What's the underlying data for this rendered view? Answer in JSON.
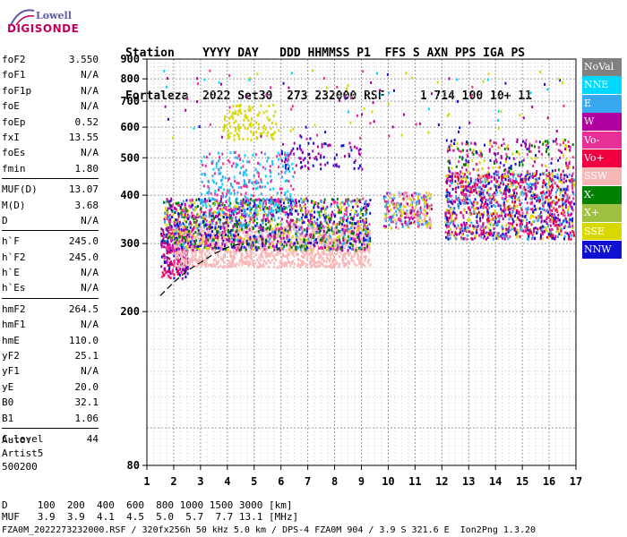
{
  "logo": {
    "line1": "Lowell",
    "line2": "DIGISONDE"
  },
  "header": {
    "line1": "Station    YYYY DAY   DDD HHMMSS P1  FFS S AXN PPS IGA PS",
    "line2": "Fortaleza  2022 Set30  273 232000 RSF     1 714 100 10+ 11"
  },
  "params": {
    "group1": [
      {
        "label": "foF2",
        "value": "3.550"
      },
      {
        "label": "foF1",
        "value": "N/A"
      },
      {
        "label": "foF1p",
        "value": "N/A"
      },
      {
        "label": "foE",
        "value": "N/A"
      },
      {
        "label": "foEp",
        "value": "0.52"
      },
      {
        "label": "fxI",
        "value": "13.55"
      },
      {
        "label": "foEs",
        "value": "N/A"
      },
      {
        "label": "fmin",
        "value": "1.80"
      }
    ],
    "group2": [
      {
        "label": "MUF(D)",
        "value": "13.07"
      },
      {
        "label": "M(D)",
        "value": "3.68"
      },
      {
        "label": "D",
        "value": "N/A"
      }
    ],
    "group3": [
      {
        "label": "h`F",
        "value": "245.0"
      },
      {
        "label": "h`F2",
        "value": "245.0"
      },
      {
        "label": "h`E",
        "value": "N/A"
      },
      {
        "label": "h`Es",
        "value": "N/A"
      }
    ],
    "group4": [
      {
        "label": "hmF2",
        "value": "264.5"
      },
      {
        "label": "hmF1",
        "value": "N/A"
      },
      {
        "label": "hmE",
        "value": "110.0"
      },
      {
        "label": "yF2",
        "value": "25.1"
      },
      {
        "label": "yF1",
        "value": "N/A"
      },
      {
        "label": "yE",
        "value": "20.0"
      },
      {
        "label": "B0",
        "value": "32.1"
      },
      {
        "label": "B1",
        "value": "1.06"
      }
    ],
    "group5": [
      {
        "label": "C-level",
        "value": "44"
      }
    ]
  },
  "auto": {
    "line1": "Auto:",
    "line2": "Artist5",
    "line3": "500200"
  },
  "legend": [
    {
      "label": "NoVal",
      "color": "#808080"
    },
    {
      "label": "NNE",
      "color": "#00d8ff"
    },
    {
      "label": "E",
      "color": "#38a8f0"
    },
    {
      "label": "W",
      "color": "#b000a0"
    },
    {
      "label": "Vo-",
      "color": "#e83098"
    },
    {
      "label": "Vo+",
      "color": "#f00040"
    },
    {
      "label": "SSW",
      "color": "#f8b8b8"
    },
    {
      "label": "X-",
      "color": "#008000"
    },
    {
      "label": "X+",
      "color": "#a0c040"
    },
    {
      "label": "SSE",
      "color": "#d8d800"
    },
    {
      "label": "NNW",
      "color": "#1010d0"
    }
  ],
  "dtable": {
    "line1": "D     100  200  400  600  800 1000 1500 3000 [km]",
    "line2": "MUF   3.9  3.9  4.1  4.5  5.0  5.7  7.7 13.1 [MHz]"
  },
  "footer": {
    "text": "FZA0M_2022273232000.RSF / 320fx256h 50 kHz 5.0 km / DPS-4 FZA0M 904 / 3.9 S 321.6 E  Ion2Png 1.3.20"
  },
  "chart_data": {
    "type": "scatter",
    "title": "",
    "xlabel": "",
    "ylabel": "",
    "xlim": [
      1,
      17
    ],
    "ylim": [
      80,
      900
    ],
    "y_scale": "log",
    "x_ticks": [
      "1",
      "2",
      "3",
      "4",
      "5",
      "6",
      "7",
      "8",
      "9",
      "10",
      "11",
      "12",
      "13",
      "14",
      "15",
      "16",
      "17"
    ],
    "y_ticks": [
      "80",
      "200",
      "300",
      "400",
      "500",
      "600",
      "700",
      "800",
      "900"
    ],
    "grid": true,
    "legend_position": "right",
    "trace": {
      "name": "",
      "x": [
        1.5,
        2.0,
        2.5,
        3.0,
        3.5,
        4.0,
        4.5
      ],
      "y": [
        220,
        238,
        255,
        268,
        282,
        293,
        300
      ]
    },
    "clusters": [
      {
        "x": [
          1.5,
          2.5
        ],
        "y": [
          245,
          330
        ],
        "density": 0.9,
        "colors": [
          "#f00040",
          "#b000a0",
          "#e83098",
          "#1010d0"
        ]
      },
      {
        "x": [
          2.0,
          9.3
        ],
        "y": [
          262,
          335
        ],
        "density": 0.8,
        "colors": [
          "#f8b8b8"
        ]
      },
      {
        "x": [
          1.6,
          9.3
        ],
        "y": [
          290,
          395
        ],
        "density": 0.7,
        "colors": [
          "#d8d800",
          "#e83098",
          "#38a8f0",
          "#b000a0",
          "#008000",
          "#1010d0"
        ]
      },
      {
        "x": [
          3.0,
          6.5
        ],
        "y": [
          360,
          520
        ],
        "density": 0.25,
        "colors": [
          "#38a8f0",
          "#00d8ff",
          "#e83098"
        ]
      },
      {
        "x": [
          3.8,
          5.8
        ],
        "y": [
          560,
          690
        ],
        "density": 0.3,
        "colors": [
          "#d8d800"
        ]
      },
      {
        "x": [
          6.0,
          9.0
        ],
        "y": [
          470,
          550
        ],
        "density": 0.2,
        "colors": [
          "#1010d0",
          "#b000a0"
        ]
      },
      {
        "x": [
          9.8,
          11.6
        ],
        "y": [
          330,
          410
        ],
        "density": 0.8,
        "colors": [
          "#f8b8b8",
          "#d8d800",
          "#e83098",
          "#38a8f0",
          "#b000a0"
        ]
      },
      {
        "x": [
          12.1,
          16.9
        ],
        "y": [
          310,
          460
        ],
        "density": 0.75,
        "colors": [
          "#b000a0",
          "#1010d0",
          "#38a8f0",
          "#e83098",
          "#d8d800",
          "#f00040"
        ]
      },
      {
        "x": [
          12.1,
          16.9
        ],
        "y": [
          460,
          560
        ],
        "density": 0.25,
        "colors": [
          "#b000a0",
          "#1010d0",
          "#008000",
          "#d8d800",
          "#e83098"
        ]
      },
      {
        "x": [
          1.5,
          17.0
        ],
        "y": [
          560,
          850
        ],
        "density": 0.02,
        "colors": [
          "#1010d0",
          "#b000a0",
          "#00d8ff",
          "#e83098",
          "#d8d800"
        ]
      }
    ]
  }
}
